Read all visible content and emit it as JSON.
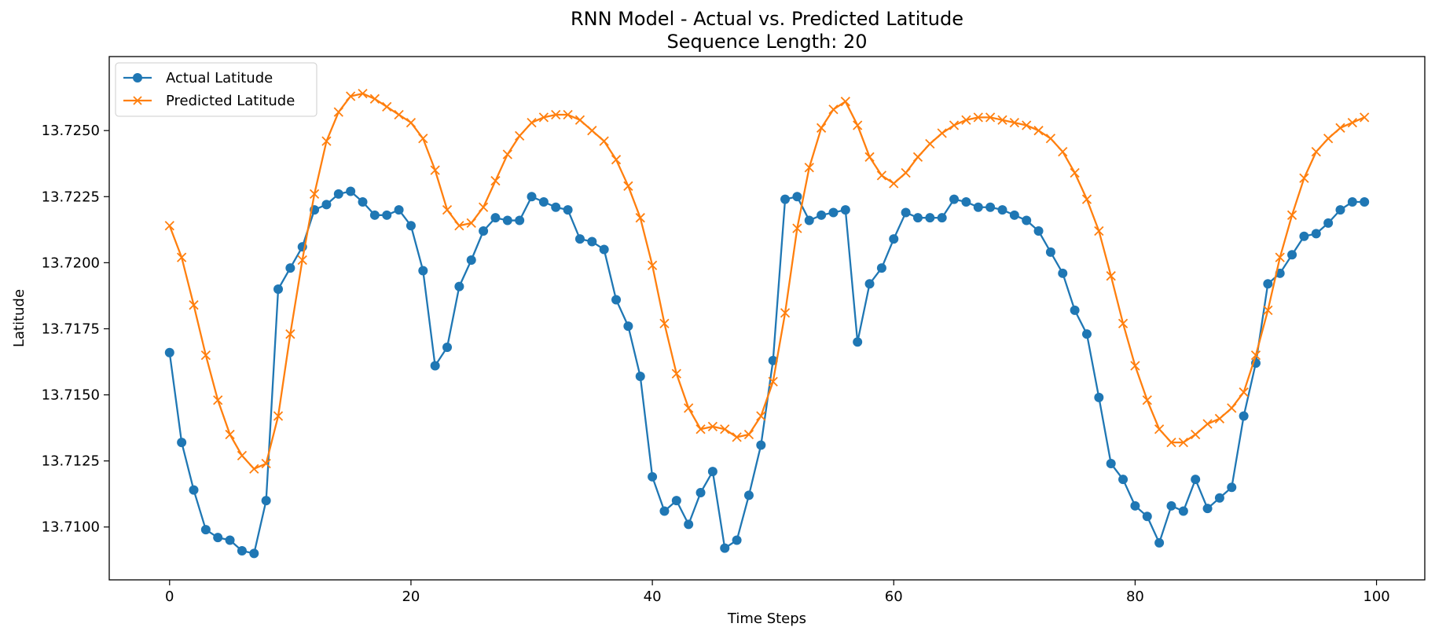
{
  "chart_data": {
    "type": "line",
    "title": "RNN Model - Actual vs. Predicted Latitude",
    "subtitle": "Sequence Length: 20",
    "xlabel": "Time Steps",
    "ylabel": "Latitude",
    "xlim": [
      -5,
      104
    ],
    "ylim": [
      13.708,
      13.7278
    ],
    "x_ticks": [
      0,
      20,
      40,
      60,
      80,
      100
    ],
    "y_ticks": [
      13.71,
      13.7125,
      13.715,
      13.7175,
      13.72,
      13.7225,
      13.725
    ],
    "x_tick_labels": [
      "0",
      "20",
      "40",
      "60",
      "80",
      "100"
    ],
    "y_tick_labels": [
      "13.7100",
      "13.7125",
      "13.7150",
      "13.7175",
      "13.7200",
      "13.7225",
      "13.7250"
    ],
    "grid": false,
    "legend_position": "upper-left",
    "x": [
      0,
      1,
      2,
      3,
      4,
      5,
      6,
      7,
      8,
      9,
      10,
      11,
      12,
      13,
      14,
      15,
      16,
      17,
      18,
      19,
      20,
      21,
      22,
      23,
      24,
      25,
      26,
      27,
      28,
      29,
      30,
      31,
      32,
      33,
      34,
      35,
      36,
      37,
      38,
      39,
      40,
      41,
      42,
      43,
      44,
      45,
      46,
      47,
      48,
      49,
      50,
      51,
      52,
      53,
      54,
      55,
      56,
      57,
      58,
      59,
      60,
      61,
      62,
      63,
      64,
      65,
      66,
      67,
      68,
      69,
      70,
      71,
      72,
      73,
      74,
      75,
      76,
      77,
      78,
      79,
      80,
      81,
      82,
      83,
      84,
      85,
      86,
      87,
      88,
      89,
      90,
      91,
      92,
      93,
      94,
      95,
      96,
      97,
      98,
      99
    ],
    "series": [
      {
        "name": "Actual Latitude",
        "color": "#1f77b4",
        "marker": "circle",
        "values": [
          13.7166,
          13.7132,
          13.7114,
          13.7099,
          13.7096,
          13.7095,
          13.7091,
          13.709,
          13.711,
          13.719,
          13.7198,
          13.7206,
          13.722,
          13.7222,
          13.7226,
          13.7227,
          13.7223,
          13.7218,
          13.7218,
          13.722,
          13.7214,
          13.7197,
          13.7161,
          13.7168,
          13.7191,
          13.7201,
          13.7212,
          13.7217,
          13.7216,
          13.7216,
          13.7225,
          13.7223,
          13.7221,
          13.722,
          13.7209,
          13.7208,
          13.7205,
          13.7186,
          13.7176,
          13.7157,
          13.7119,
          13.7106,
          13.711,
          13.7101,
          13.7113,
          13.7121,
          13.7092,
          13.7095,
          13.7112,
          13.7131,
          13.7163,
          13.7224,
          13.7225,
          13.7216,
          13.7218,
          13.7219,
          13.722,
          13.717,
          13.7192,
          13.7198,
          13.7209,
          13.7219,
          13.7217,
          13.7217,
          13.7217,
          13.7224,
          13.7223,
          13.7221,
          13.7221,
          13.722,
          13.7218,
          13.7216,
          13.7212,
          13.7204,
          13.7196,
          13.7182,
          13.7173,
          13.7149,
          13.7124,
          13.7118,
          13.7108,
          13.7104,
          13.7094,
          13.7108,
          13.7106,
          13.7118,
          13.7107,
          13.7111,
          13.7115,
          13.7142,
          13.7162,
          13.7192,
          13.7196,
          13.7203,
          13.721,
          13.7211,
          13.7215,
          13.722,
          13.7223,
          13.7223
        ]
      },
      {
        "name": "Predicted Latitude",
        "color": "#ff7f0e",
        "marker": "x",
        "values": [
          13.7214,
          13.7202,
          13.7184,
          13.7165,
          13.7148,
          13.7135,
          13.7127,
          13.7122,
          13.7124,
          13.7142,
          13.7173,
          13.7201,
          13.7226,
          13.7246,
          13.7257,
          13.7263,
          13.7264,
          13.7262,
          13.7259,
          13.7256,
          13.7253,
          13.7247,
          13.7235,
          13.722,
          13.7214,
          13.7215,
          13.7221,
          13.7231,
          13.7241,
          13.7248,
          13.7253,
          13.7255,
          13.7256,
          13.7256,
          13.7254,
          13.725,
          13.7246,
          13.7239,
          13.7229,
          13.7217,
          13.7199,
          13.7177,
          13.7158,
          13.7145,
          13.7137,
          13.7138,
          13.7137,
          13.7134,
          13.7135,
          13.7142,
          13.7155,
          13.7181,
          13.7213,
          13.7236,
          13.7251,
          13.7258,
          13.7261,
          13.7252,
          13.724,
          13.7233,
          13.723,
          13.7234,
          13.724,
          13.7245,
          13.7249,
          13.7252,
          13.7254,
          13.7255,
          13.7255,
          13.7254,
          13.7253,
          13.7252,
          13.725,
          13.7247,
          13.7242,
          13.7234,
          13.7224,
          13.7212,
          13.7195,
          13.7177,
          13.7161,
          13.7148,
          13.7137,
          13.7132,
          13.7132,
          13.7135,
          13.7139,
          13.7141,
          13.7145,
          13.7151,
          13.7165,
          13.7182,
          13.7202,
          13.7218,
          13.7232,
          13.7242,
          13.7247,
          13.7251,
          13.7253,
          13.7255
        ]
      }
    ]
  }
}
